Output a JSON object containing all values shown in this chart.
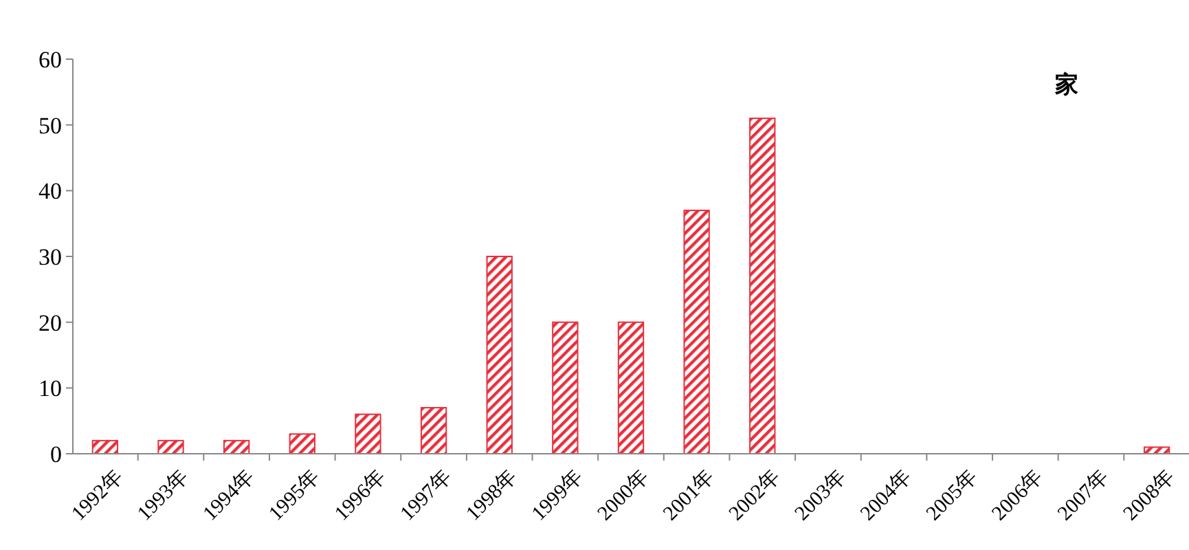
{
  "chart_data": {
    "type": "bar",
    "categories": [
      "1992年",
      "1993年",
      "1994年",
      "1995年",
      "1996年",
      "1997年",
      "1998年",
      "1999年",
      "2000年",
      "2001年",
      "2002年",
      "2003年",
      "2004年",
      "2005年",
      "2006年",
      "2007年",
      "2008年"
    ],
    "values": [
      2,
      2,
      2,
      3,
      6,
      7,
      30,
      20,
      20,
      37,
      51,
      0,
      0,
      0,
      0,
      0,
      1
    ],
    "color": "#e8303c",
    "ylim": [
      0,
      60
    ],
    "yticks": [
      0,
      10,
      20,
      30,
      40,
      50,
      60
    ],
    "grid": false,
    "annotations": [
      "家"
    ]
  }
}
